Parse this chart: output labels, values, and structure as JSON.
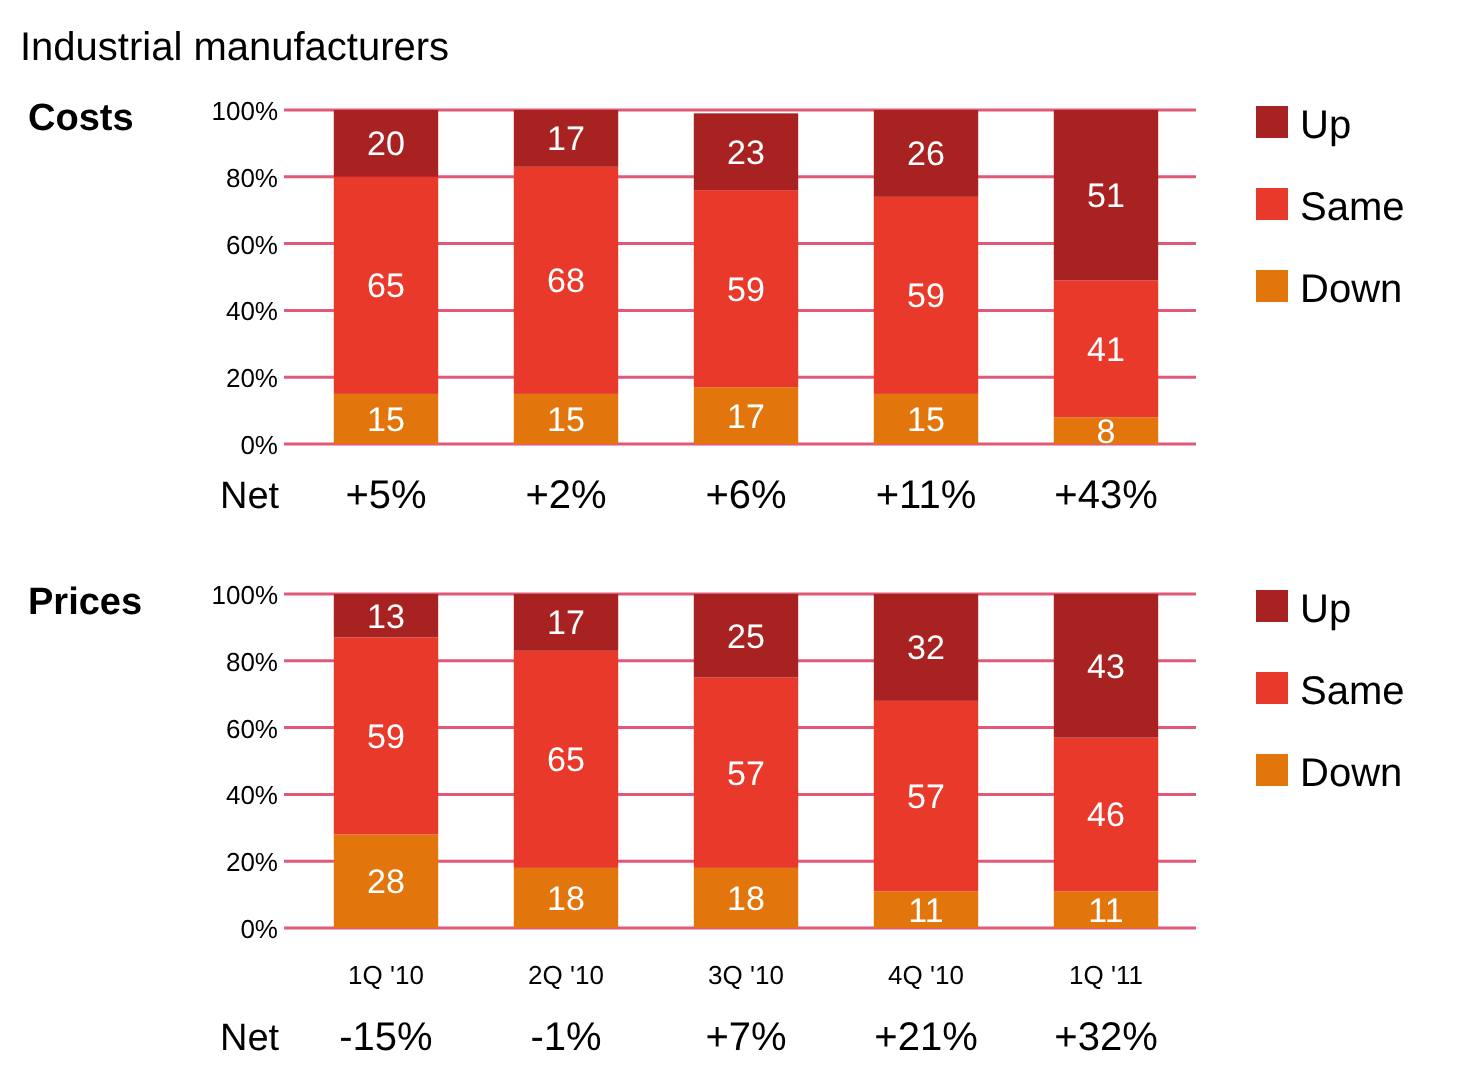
{
  "chart_data": [
    {
      "type": "bar",
      "title": "Industrial manufacturers",
      "subtitle": "Costs",
      "stacked": true,
      "data_labels": true,
      "grid": "y",
      "legend": "top right",
      "categories": [
        null,
        null,
        null,
        null,
        null
      ],
      "ylim": [
        0,
        100
      ],
      "yticks": [
        {
          "value": 0,
          "label": "0%"
        },
        {
          "value": 20,
          "label": "20%"
        },
        {
          "value": 40,
          "label": "40%"
        },
        {
          "value": 60,
          "label": "60%"
        },
        {
          "value": 80,
          "label": "80%"
        },
        {
          "value": 100,
          "label": "100%"
        }
      ],
      "series": [
        {
          "name": "Down",
          "color": "#e2760c",
          "values": [
            15,
            15,
            17,
            15,
            8
          ]
        },
        {
          "name": "Same",
          "color": "#e8392a",
          "values": [
            65,
            68,
            59,
            59,
            41
          ]
        },
        {
          "name": "Up",
          "color": "#a82222",
          "values": [
            20,
            17,
            23,
            26,
            51
          ]
        }
      ],
      "annotations": [
        "Net",
        "+5%",
        "+2%",
        "+6%",
        "+11%",
        "+43%"
      ]
    },
    {
      "type": "bar",
      "title": "Prices",
      "stacked": true,
      "data_labels": true,
      "grid": "y",
      "legend": "top right",
      "categories": [
        "1Q '10",
        "2Q '10",
        "3Q '10",
        "4Q '10",
        "1Q '11"
      ],
      "ylim": [
        0,
        100
      ],
      "yticks": [
        {
          "value": 0,
          "label": "0%"
        },
        {
          "value": 20,
          "label": "20%"
        },
        {
          "value": 40,
          "label": "40%"
        },
        {
          "value": 60,
          "label": "60%"
        },
        {
          "value": 80,
          "label": "80%"
        },
        {
          "value": 100,
          "label": "100%"
        }
      ],
      "series": [
        {
          "name": "Down",
          "color": "#e2760c",
          "values": [
            28,
            18,
            18,
            11,
            11
          ]
        },
        {
          "name": "Same",
          "color": "#e8392a",
          "values": [
            59,
            65,
            57,
            57,
            46
          ]
        },
        {
          "name": "Up",
          "color": "#a82222",
          "values": [
            13,
            17,
            25,
            32,
            43
          ]
        }
      ],
      "annotations": [
        "Net",
        "-15%",
        "-1%",
        "+7%",
        "+21%",
        "+32%"
      ]
    }
  ]
}
